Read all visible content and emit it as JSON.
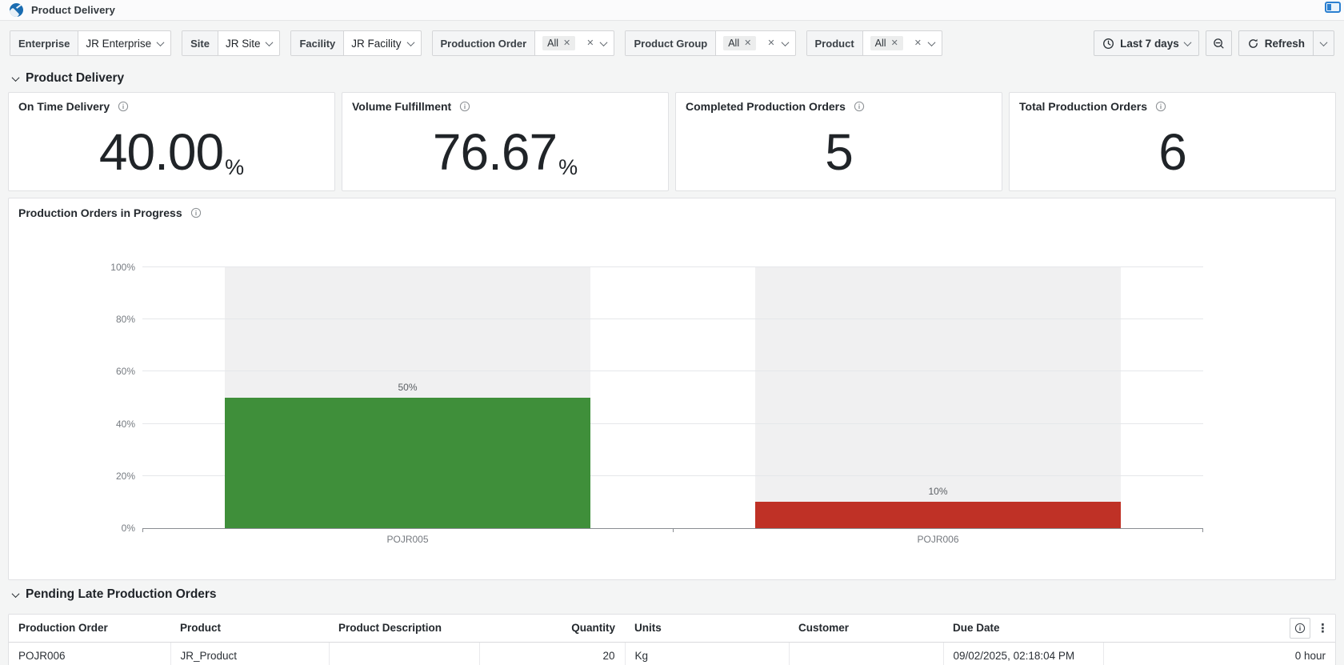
{
  "app": {
    "title": "Product Delivery"
  },
  "filters": [
    {
      "label": "Enterprise",
      "value": "JR Enterprise",
      "type": "select"
    },
    {
      "label": "Site",
      "value": "JR Site",
      "type": "select"
    },
    {
      "label": "Facility",
      "value": "JR Facility",
      "type": "select"
    },
    {
      "label": "Production Order",
      "value": "All",
      "type": "multiselect"
    },
    {
      "label": "Product Group",
      "value": "All",
      "type": "multiselect"
    },
    {
      "label": "Product",
      "value": "All",
      "type": "multiselect"
    }
  ],
  "toolbar": {
    "time_range": "Last 7 days",
    "refresh_label": "Refresh"
  },
  "sections": {
    "delivery": "Product Delivery",
    "pending": "Pending Late Production Orders"
  },
  "kpis": [
    {
      "title": "On Time Delivery",
      "value": "40.00",
      "suffix": "%"
    },
    {
      "title": "Volume Fulfillment",
      "value": "76.67",
      "suffix": "%"
    },
    {
      "title": "Completed Production Orders",
      "value": "5",
      "suffix": ""
    },
    {
      "title": "Total Production Orders",
      "value": "6",
      "suffix": ""
    }
  ],
  "chart_panel": {
    "title": "Production Orders in Progress"
  },
  "chart_data": {
    "type": "bar",
    "title": "Production Orders in Progress",
    "categories": [
      "POJR005",
      "POJR006"
    ],
    "values": [
      50,
      10
    ],
    "value_labels": [
      "50%",
      "10%"
    ],
    "bar_colors": [
      "#3f8f3a",
      "#bf3126"
    ],
    "background_bar_color": "#f0f0f1",
    "y_ticks": [
      "100%",
      "80%",
      "60%",
      "40%",
      "20%",
      "0%"
    ],
    "ylim": [
      0,
      100
    ],
    "ylabel": "",
    "xlabel": "",
    "grid": true,
    "legend": "none"
  },
  "table": {
    "columns": [
      "Production Order",
      "Product",
      "Product Description",
      "Quantity",
      "Units",
      "Customer",
      "Due Date",
      ""
    ],
    "rows": [
      [
        "POJR006",
        "JR_Product",
        "",
        "20",
        "Kg",
        "",
        "09/02/2025, 02:18:04 PM",
        "0 hour"
      ]
    ]
  },
  "colors": {
    "accent_blue": "#1a6cb1",
    "bar_green": "#3f8f3a",
    "bar_red": "#bf3126",
    "page_bg": "#f4f5f5"
  }
}
